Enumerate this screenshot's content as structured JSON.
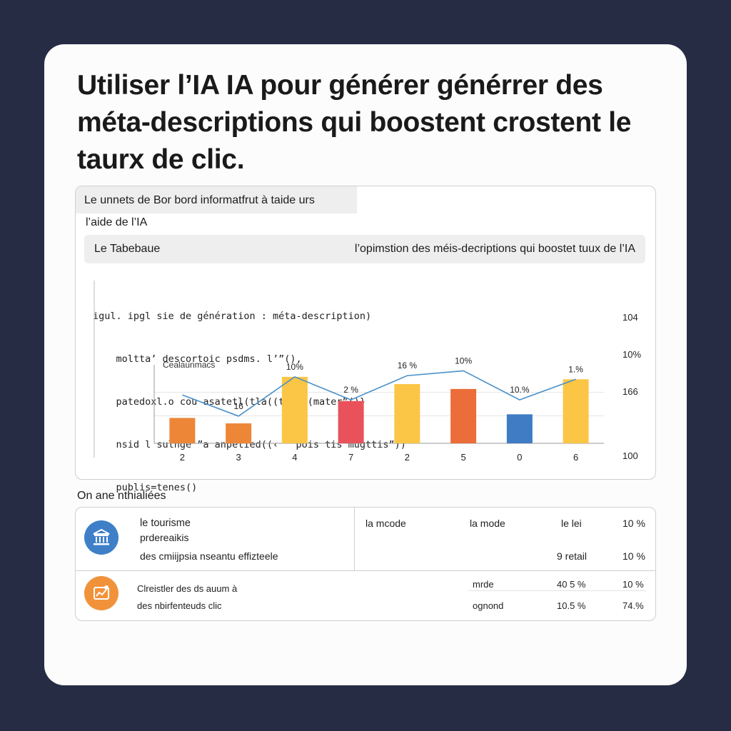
{
  "title": "Utiliser l’IA IA pour générer générrer des méta-descriptions qui boostent crostent le taurx de clic.",
  "dashboard": {
    "header": "Le unnets de Bor bord informatfrut à taide urs",
    "subheader": "l’aide de l’IA",
    "bar_left": "Le Tabebaue",
    "bar_right": "l’opimstion des méis-decriptions qui boostet tuux de l’IA",
    "code_lines": [
      "igul. ipgl sie de génération : méta-description)",
      "    moltta’ descortoic psdms. l’”(),",
      "    patedoxl.o cou asatetl(tla((tpuat(mater”()}",
      "    nsid l sulnge ”a anpetied((‹  “pois tis mugttis”))",
      "    publis=tenes()"
    ]
  },
  "chart_data": {
    "type": "bar",
    "series_label": "Cealaunmacs",
    "categories": [
      "2",
      "3",
      "4",
      "7",
      "2",
      "5",
      "0",
      "6"
    ],
    "values": [
      42,
      33,
      110,
      70,
      98,
      90,
      48,
      106
    ],
    "bar_colors": [
      "#ee8637",
      "#ee8637",
      "#fbc645",
      "#e9525a",
      "#fbc645",
      "#eb6d3a",
      "#3f7cc3",
      "#fbc645"
    ],
    "data_labels": [
      "",
      "16",
      "10%",
      "2 %",
      "16 %",
      "10%",
      "10.%",
      "1.%"
    ],
    "line_values": [
      80,
      45,
      110,
      72,
      112,
      120,
      72,
      106
    ],
    "y_labels": [
      "104",
      "10%",
      "166",
      "100"
    ],
    "ylim": [
      0,
      130
    ]
  },
  "section_label": "On ane nthialiées",
  "table": {
    "row1": {
      "icon": "bank-icon",
      "icon_color": "#3e7fc8",
      "title": "le tourisme",
      "sub": "prdereaikis",
      "desc": "des cmiijpsia nseantu effizteele",
      "col1": "la mcode",
      "col2": "la mode",
      "col3": "le lei",
      "col4": "10 %",
      "row2_col3": "9 retail",
      "row2_col4": "10 %"
    },
    "row2": {
      "icon": "chart-board-icon",
      "icon_color": "#f1923a",
      "title": "Clreistler des ds auum à",
      "desc": "des nbirfenteuds clic",
      "a_label": "mrde",
      "a_val": "40 5 %",
      "a_pct": "10 %",
      "b_label": "ognond",
      "b_val": "10.5 %",
      "b_pct": "74.%"
    }
  }
}
